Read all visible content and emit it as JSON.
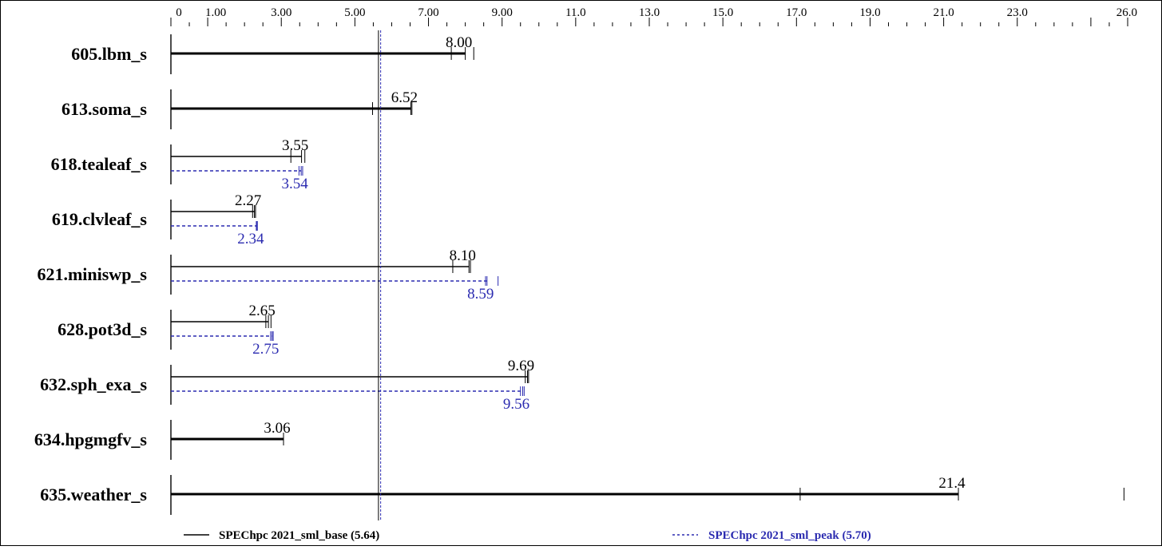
{
  "chart_data": {
    "type": "bar",
    "orientation": "horizontal",
    "xlim": [
      0,
      26.0
    ],
    "tick_labels": [
      "0",
      "1.00",
      "3.00",
      "5.00",
      "7.00",
      "9.00",
      "11.0",
      "13.0",
      "15.0",
      "17.0",
      "19.0",
      "21.0",
      "23.0",
      "26.0"
    ],
    "tick_values": [
      0,
      1,
      3,
      5,
      7,
      9,
      11,
      13,
      15,
      17,
      19,
      21,
      23,
      26
    ],
    "grid": false,
    "legend_position": "bottom",
    "categories": [
      "605.lbm_s",
      "613.soma_s",
      "618.tealeaf_s",
      "619.clvleaf_s",
      "621.miniswp_s",
      "628.pot3d_s",
      "632.sph_exa_s",
      "634.hpgmgfv_s",
      "635.weather_s"
    ],
    "series": [
      {
        "name": "SPEChpc 2021_sml_base (5.64)",
        "color": "#000000",
        "values": [
          8.0,
          6.52,
          3.55,
          2.27,
          8.1,
          2.65,
          9.69,
          3.06,
          21.4
        ],
        "labels": [
          "8.00",
          "6.52",
          "3.55",
          "2.27",
          "8.10",
          "2.65",
          "9.69",
          "3.06",
          "21.4"
        ],
        "run_ticks": [
          [
            7.62,
            8.0,
            8.23
          ],
          [
            5.48,
            6.52,
            6.55
          ],
          [
            3.26,
            3.55,
            3.64
          ],
          [
            2.22,
            2.27,
            2.3
          ],
          [
            7.66,
            8.1,
            8.14
          ],
          [
            2.58,
            2.65,
            2.72
          ],
          [
            9.63,
            9.69,
            9.72
          ],
          [
            3.06,
            3.06,
            3.06
          ],
          [
            17.1,
            21.4,
            25.9
          ]
        ]
      },
      {
        "name": "SPEChpc 2021_sml_peak (5.70)",
        "color": "#2b2bb0",
        "values": [
          null,
          null,
          3.54,
          2.34,
          8.59,
          2.75,
          9.56,
          null,
          null
        ],
        "labels": [
          "",
          "",
          "3.54",
          "2.34",
          "8.59",
          "2.75",
          "9.56",
          "",
          ""
        ],
        "run_ticks": [
          [],
          [],
          [
            3.48,
            3.54,
            3.58
          ],
          [
            2.32,
            2.34,
            2.35
          ],
          [
            8.55,
            8.59,
            8.89
          ],
          [
            2.71,
            2.75,
            2.78
          ],
          [
            9.5,
            9.56,
            9.6
          ],
          [],
          []
        ]
      }
    ],
    "reference_lines": [
      {
        "series": "base",
        "value": 5.64
      },
      {
        "series": "peak",
        "value": 5.7
      }
    ]
  }
}
